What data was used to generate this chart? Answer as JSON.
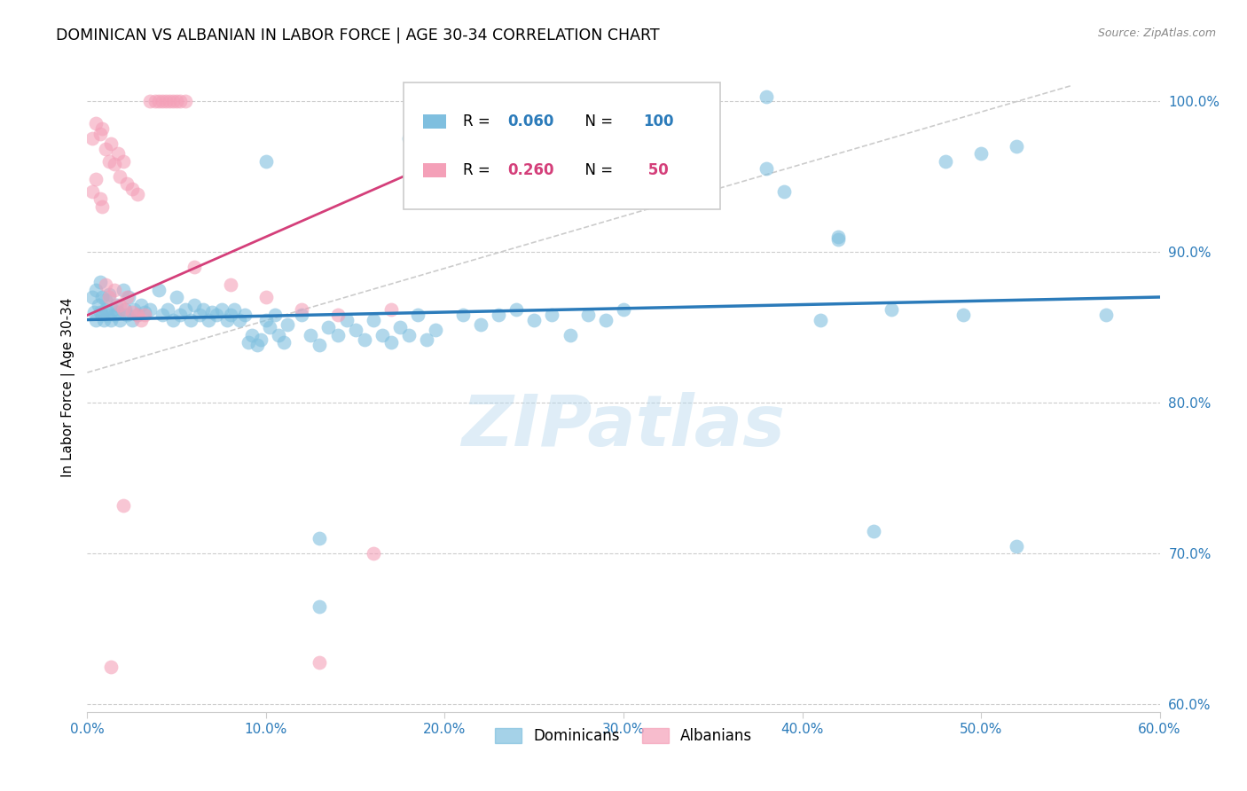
{
  "title": "DOMINICAN VS ALBANIAN IN LABOR FORCE | AGE 30-34 CORRELATION CHART",
  "source": "Source: ZipAtlas.com",
  "ylabel": "In Labor Force | Age 30-34",
  "xlim": [
    0.0,
    0.6
  ],
  "ylim": [
    0.595,
    1.025
  ],
  "xtick_vals": [
    0.0,
    0.1,
    0.2,
    0.3,
    0.4,
    0.5,
    0.6
  ],
  "ytick_vals": [
    0.6,
    0.7,
    0.8,
    0.9,
    1.0
  ],
  "xtick_labels": [
    "0.0%",
    "10.0%",
    "20.0%",
    "30.0%",
    "40.0%",
    "50.0%",
    "60.0%"
  ],
  "ytick_labels": [
    "60.0%",
    "70.0%",
    "80.0%",
    "90.0%",
    "100.0%"
  ],
  "blue_color": "#7fbfdf",
  "pink_color": "#f4a0b8",
  "blue_line_color": "#2b7bba",
  "pink_line_color": "#d43f7a",
  "blue_R": 0.06,
  "blue_N": 100,
  "pink_R": 0.26,
  "pink_N": 50,
  "legend_dominicans": "Dominicans",
  "legend_albanians": "Albanians",
  "watermark": "ZIPatlas"
}
